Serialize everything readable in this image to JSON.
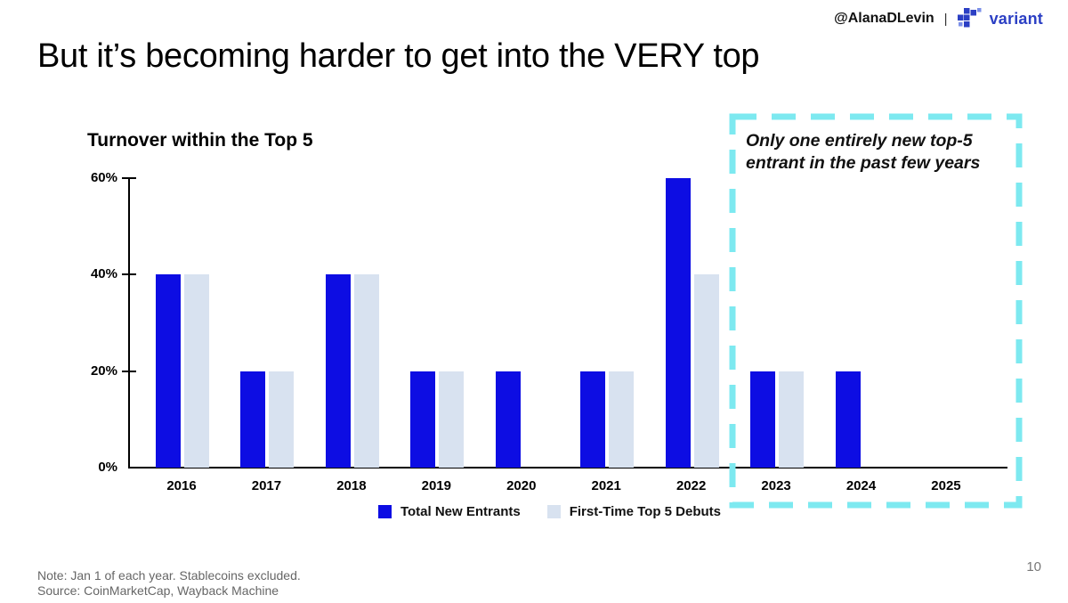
{
  "header": {
    "handle": "@AlanaDLevin",
    "separator": "|",
    "brand": "variant"
  },
  "slide": {
    "title": "But it’s becoming harder to get into the VERY top",
    "page_number": "10",
    "note_line1": "Note: Jan 1 of each year. Stablecoins excluded.",
    "note_line2": "Source: CoinMarketCap, Wayback Machine"
  },
  "annotation": {
    "text": "Only one entirely new top-5 entrant in the past few years"
  },
  "colors": {
    "bar_primary": "#0d0de3",
    "bar_secondary": "#d8e2f0",
    "highlight_dash": "#7de9f0",
    "brand_blue": "#2b3fc4",
    "brand_blue_light": "#7b8fe8",
    "note_gray": "#666666"
  },
  "chart_data": {
    "type": "bar",
    "title": "Turnover within the Top 5",
    "categories": [
      "2016",
      "2017",
      "2018",
      "2019",
      "2020",
      "2021",
      "2022",
      "2023",
      "2024",
      "2025"
    ],
    "series": [
      {
        "name": "Total New Entrants",
        "color": "#0d0de3",
        "values": [
          40,
          20,
          40,
          20,
          20,
          20,
          60,
          20,
          20,
          0
        ]
      },
      {
        "name": "First-Time Top 5 Debuts",
        "color": "#d8e2f0",
        "values": [
          40,
          20,
          40,
          20,
          0,
          20,
          40,
          20,
          0,
          0
        ]
      }
    ],
    "xlabel": "",
    "ylabel": "",
    "y_ticks": [
      "0%",
      "20%",
      "40%",
      "60%"
    ],
    "ylim": [
      0,
      60
    ],
    "grid": false,
    "legend_position": "bottom",
    "annotation": "Only one entirely new top-5 entrant in the past few years",
    "highlight": {
      "years": [
        "2023",
        "2024",
        "2025"
      ],
      "style": "dashed-box",
      "color": "#7de9f0"
    }
  }
}
